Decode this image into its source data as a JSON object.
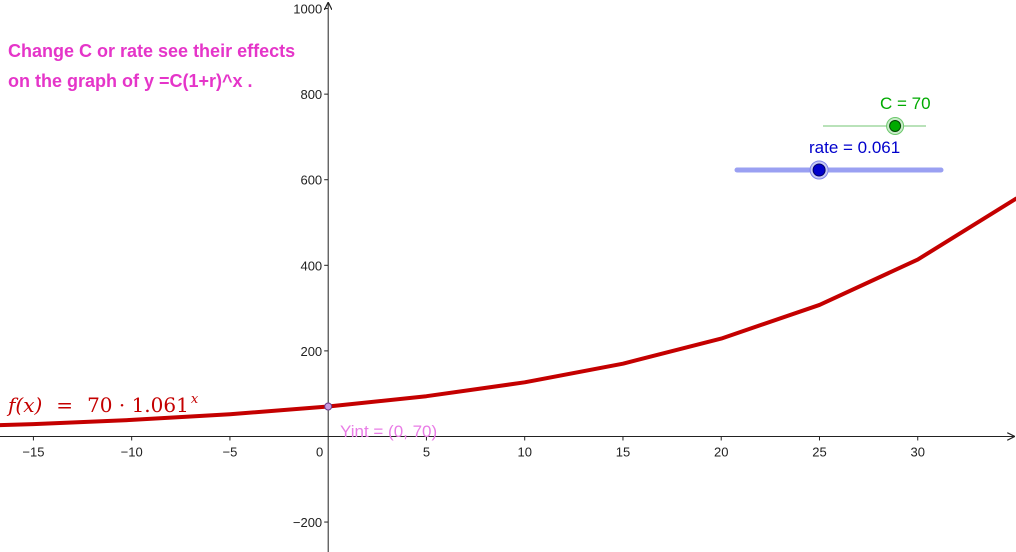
{
  "instruction": {
    "line1": "Change C or rate see their effects",
    "line2": "on the graph of y =C(1+r)^x ."
  },
  "colors": {
    "instruction": "#e535c9",
    "curve": "#c40000",
    "slider_c": "#00aa00",
    "slider_rate": "#0000cc",
    "slider_rate_track": "#9aa0f2",
    "slider_c_track": "#8fd18f",
    "yint": "#e97ce6",
    "axis": "#222222"
  },
  "sliders": {
    "c": {
      "label": "C = 70",
      "value": 70,
      "min": 0,
      "max": 100
    },
    "rate": {
      "label": "rate = 0.061",
      "value": 0.061,
      "min": -0.1,
      "max": 0.3
    }
  },
  "function_label": {
    "lhs": "f(x)",
    "eq": "=",
    "rhs": "70 · 1.061",
    "exp": "x"
  },
  "yint_label": "Yint = (0, 70)",
  "chart_data": {
    "type": "line",
    "title": "",
    "xlabel": "",
    "ylabel": "",
    "xlim": [
      -16.7,
      35
    ],
    "ylim": [
      -270,
      1020
    ],
    "xticks": [
      -15,
      -10,
      -5,
      0,
      5,
      10,
      15,
      20,
      25,
      30
    ],
    "yticks": [
      -200,
      200,
      400,
      600,
      800,
      1000
    ],
    "grid": false,
    "series": [
      {
        "function": "70 * 1.061^x",
        "x": [
          -16.7,
          -15,
          -10,
          -5,
          0,
          5,
          10,
          15,
          20,
          25,
          30,
          35
        ],
        "y": [
          26.5,
          28.8,
          38.7,
          52.0,
          70,
          94.1,
          126.5,
          170.1,
          228.7,
          307.4,
          413.4,
          555.7
        ]
      }
    ],
    "points": [
      {
        "label": "Yint",
        "x": 0,
        "y": 70
      }
    ]
  }
}
